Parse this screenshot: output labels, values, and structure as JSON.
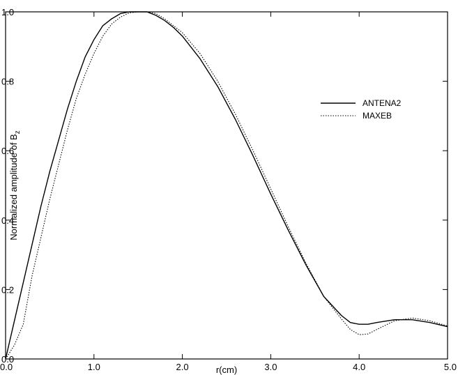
{
  "chart_data": {
    "type": "line",
    "xlabel": "r(cm)",
    "ylabel_main": "Normalized amplitude of B",
    "ylabel_sub": "z",
    "xlim": [
      0,
      5
    ],
    "ylim": [
      0,
      1
    ],
    "grid": false,
    "legend_position": "top-right",
    "x_ticks": [
      {
        "value": 0,
        "label": "0.0"
      },
      {
        "value": 1,
        "label": "1.0"
      },
      {
        "value": 2,
        "label": "2.0"
      },
      {
        "value": 3,
        "label": "3.0"
      },
      {
        "value": 4,
        "label": "4.0"
      },
      {
        "value": 5,
        "label": "5.0"
      }
    ],
    "y_ticks": [
      {
        "value": 0,
        "label": "0.0"
      },
      {
        "value": 0.2,
        "label": "0.2"
      },
      {
        "value": 0.4,
        "label": "0.4"
      },
      {
        "value": 0.6,
        "label": "0.6"
      },
      {
        "value": 0.8,
        "label": "0.8"
      },
      {
        "value": 1.0,
        "label": "1.0"
      }
    ],
    "series": [
      {
        "name": "ANTENA2",
        "style": "solid",
        "x": [
          0,
          0.1,
          0.2,
          0.3,
          0.4,
          0.5,
          0.6,
          0.7,
          0.8,
          0.9,
          1.0,
          1.1,
          1.2,
          1.3,
          1.4,
          1.5,
          1.6,
          1.7,
          1.8,
          1.9,
          2.0,
          2.2,
          2.4,
          2.6,
          2.8,
          3.0,
          3.2,
          3.4,
          3.6,
          3.8,
          3.9,
          4.0,
          4.1,
          4.2,
          4.4,
          4.6,
          4.8,
          5.0
        ],
        "y": [
          0.0,
          0.11,
          0.22,
          0.33,
          0.44,
          0.54,
          0.63,
          0.72,
          0.8,
          0.87,
          0.92,
          0.96,
          0.98,
          0.995,
          1.0,
          1.0,
          1.0,
          0.99,
          0.975,
          0.955,
          0.93,
          0.865,
          0.785,
          0.69,
          0.585,
          0.475,
          0.37,
          0.27,
          0.18,
          0.125,
          0.105,
          0.1,
          0.1,
          0.105,
          0.113,
          0.113,
          0.105,
          0.093
        ]
      },
      {
        "name": "MAXEB",
        "style": "dotted",
        "x": [
          0,
          0.1,
          0.2,
          0.3,
          0.4,
          0.5,
          0.6,
          0.7,
          0.8,
          0.9,
          1.0,
          1.1,
          1.2,
          1.3,
          1.4,
          1.5,
          1.6,
          1.7,
          1.8,
          1.9,
          2.0,
          2.2,
          2.4,
          2.6,
          2.8,
          3.0,
          3.2,
          3.4,
          3.6,
          3.8,
          3.9,
          4.0,
          4.1,
          4.2,
          4.4,
          4.6,
          4.8,
          5.0
        ],
        "y": [
          0.0,
          0.04,
          0.1,
          0.24,
          0.35,
          0.46,
          0.56,
          0.66,
          0.75,
          0.82,
          0.88,
          0.93,
          0.965,
          0.985,
          0.997,
          1.0,
          1.0,
          0.995,
          0.98,
          0.96,
          0.94,
          0.88,
          0.8,
          0.705,
          0.6,
          0.49,
          0.38,
          0.275,
          0.18,
          0.115,
          0.085,
          0.07,
          0.072,
          0.085,
          0.11,
          0.118,
          0.11,
          0.095
        ]
      }
    ]
  }
}
